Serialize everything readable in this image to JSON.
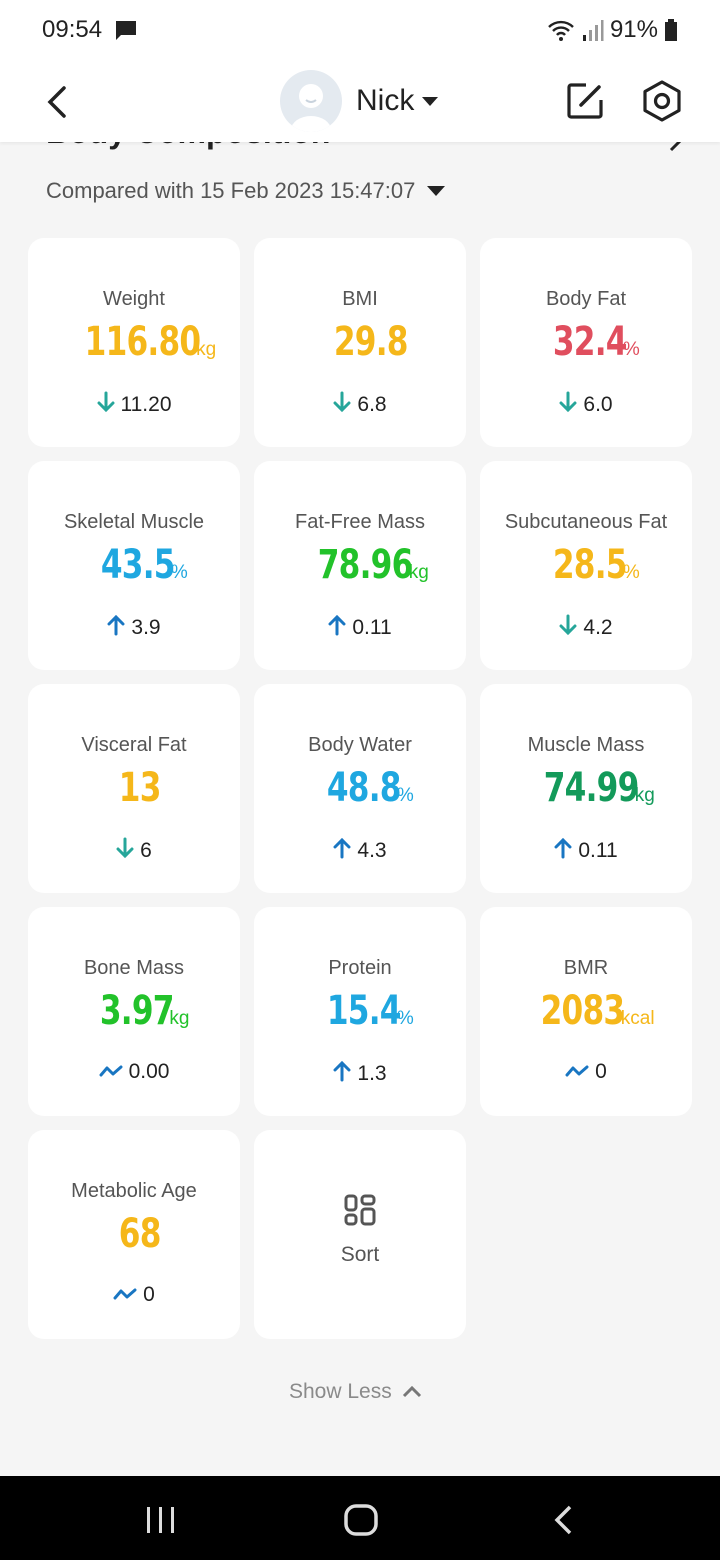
{
  "status_bar": {
    "time": "09:54",
    "battery": "91%"
  },
  "header": {
    "user_name": "Nick"
  },
  "section": {
    "title": "Body Composition",
    "compared_with": "Compared with 15 Feb 2023 15:47:07"
  },
  "colors": {
    "yellow": "#f5b71a",
    "red": "#e04e5e",
    "blue": "#1fa7e0",
    "green": "#22c22a",
    "dark_green": "#139a5a",
    "arrow_teal": "#26a69a",
    "arrow_blue": "#1976c2"
  },
  "metrics": [
    {
      "label": "Weight",
      "value": "116.80",
      "unit": "kg",
      "delta": "11.20",
      "trend": "down",
      "color": "#f5b71a"
    },
    {
      "label": "BMI",
      "value": "29.8",
      "unit": "",
      "delta": "6.8",
      "trend": "down",
      "color": "#f5b71a"
    },
    {
      "label": "Body Fat",
      "value": "32.4",
      "unit": "%",
      "delta": "6.0",
      "trend": "down",
      "color": "#e04e5e"
    },
    {
      "label": "Skeletal Muscle",
      "value": "43.5",
      "unit": "%",
      "delta": "3.9",
      "trend": "up",
      "color": "#1fa7e0"
    },
    {
      "label": "Fat-Free Mass",
      "value": "78.96",
      "unit": "kg",
      "delta": "0.11",
      "trend": "up",
      "color": "#22c22a"
    },
    {
      "label": "Subcutaneous Fat",
      "value": "28.5",
      "unit": "%",
      "delta": "4.2",
      "trend": "down",
      "color": "#f5b71a"
    },
    {
      "label": "Visceral Fat",
      "value": "13",
      "unit": "",
      "delta": "6",
      "trend": "down",
      "color": "#f5b71a"
    },
    {
      "label": "Body Water",
      "value": "48.8",
      "unit": "%",
      "delta": "4.3",
      "trend": "up",
      "color": "#1fa7e0"
    },
    {
      "label": "Muscle Mass",
      "value": "74.99",
      "unit": "kg",
      "delta": "0.11",
      "trend": "up",
      "color": "#139a5a"
    },
    {
      "label": "Bone Mass",
      "value": "3.97",
      "unit": "kg",
      "delta": "0.00",
      "trend": "flat",
      "color": "#22c22a"
    },
    {
      "label": "Protein",
      "value": "15.4",
      "unit": "%",
      "delta": "1.3",
      "trend": "up",
      "color": "#1fa7e0"
    },
    {
      "label": "BMR",
      "value": "2083",
      "unit": "kcal",
      "delta": "0",
      "trend": "flat",
      "color": "#f5b71a"
    },
    {
      "label": "Metabolic Age",
      "value": "68",
      "unit": "",
      "delta": "0",
      "trend": "flat",
      "color": "#f5b71a"
    }
  ],
  "sort": {
    "label": "Sort"
  },
  "show_less": {
    "label": "Show Less"
  }
}
